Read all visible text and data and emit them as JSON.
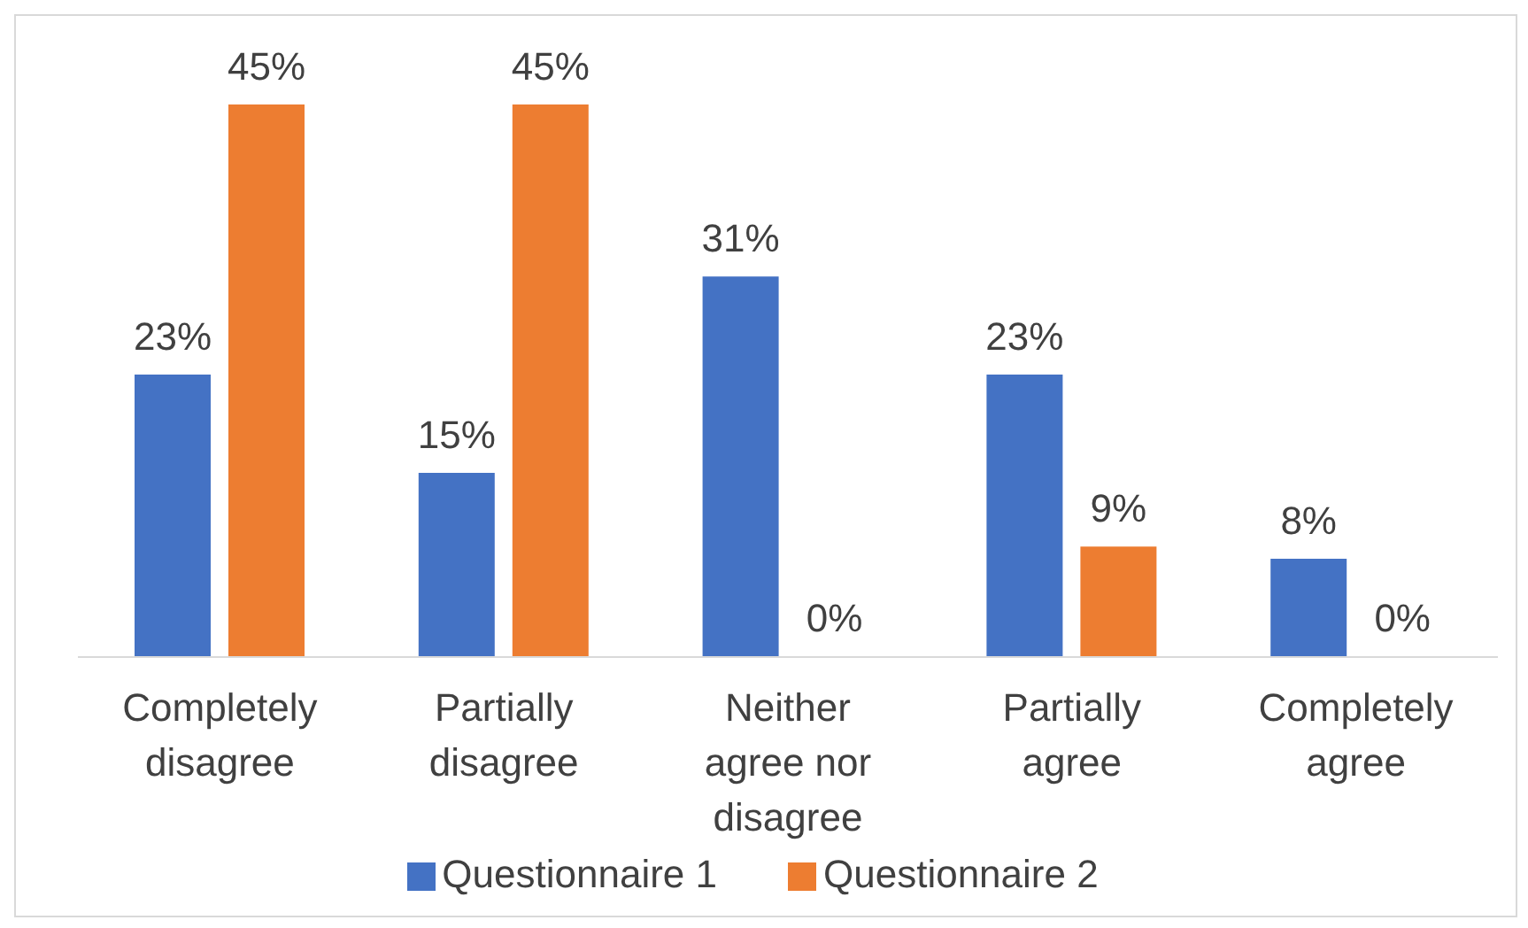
{
  "chart_data": {
    "type": "bar",
    "categories": [
      "Completely disagree",
      "Partially disagree",
      "Neither agree nor disagree",
      "Partially agree",
      "Completely agree"
    ],
    "series": [
      {
        "name": "Questionnaire 1",
        "color": "#4472c4",
        "values": [
          23,
          15,
          31,
          23,
          8
        ],
        "value_labels": [
          "23%",
          "15%",
          "31%",
          "23%",
          "8%"
        ]
      },
      {
        "name": "Questionnaire 2",
        "color": "#ed7d31",
        "values": [
          45,
          45,
          0,
          9,
          0
        ],
        "value_labels": [
          "45%",
          "45%",
          "0%",
          "9%",
          "0%"
        ]
      }
    ],
    "ylim": [
      0,
      45
    ],
    "tick_labels": "x",
    "grid": false,
    "legend": "bottom"
  }
}
